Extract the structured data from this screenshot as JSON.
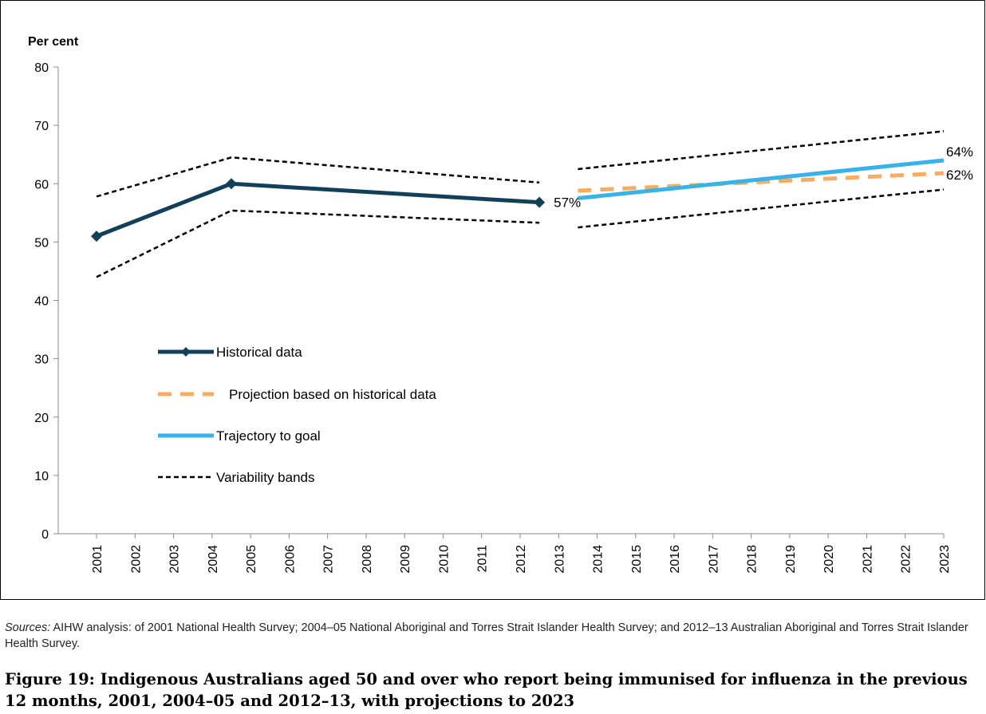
{
  "chart_data": {
    "type": "line",
    "ylabel": "Per cent",
    "ylim": [
      0,
      80
    ],
    "yticks": [
      0,
      10,
      20,
      30,
      40,
      50,
      60,
      70,
      80
    ],
    "categories": [
      "2001",
      "2002",
      "2003",
      "2004",
      "2005",
      "2006",
      "2007",
      "2008",
      "2009",
      "2010",
      "2011",
      "2012",
      "2013",
      "2014",
      "2015",
      "2016",
      "2017",
      "2018",
      "2019",
      "2020",
      "2021",
      "2022",
      "2023"
    ],
    "grid": false,
    "legend_position": "left-center",
    "series": [
      {
        "name": "Historical data",
        "color": "#123f5a",
        "style": "solid-markers",
        "points": [
          {
            "x": 0,
            "y": 51
          },
          {
            "x": 3.5,
            "y": 60
          },
          {
            "x": 11.5,
            "y": 56.8
          }
        ]
      },
      {
        "name": "Projection based on historical data",
        "color": "#f6ad62",
        "style": "dashed",
        "points": [
          {
            "x": 12.5,
            "y": 58.8
          },
          {
            "x": 22,
            "y": 61.8
          }
        ]
      },
      {
        "name": "Trajectory to goal",
        "color": "#36b3ea",
        "style": "solid",
        "points": [
          {
            "x": 12.5,
            "y": 57.5
          },
          {
            "x": 22,
            "y": 64
          }
        ]
      },
      {
        "name": "Variability bands",
        "color": "#000000",
        "style": "short-dashed",
        "segments": [
          [
            {
              "x": 0,
              "y": 57.8
            },
            {
              "x": 3.5,
              "y": 64.5
            },
            {
              "x": 11.5,
              "y": 60.2
            }
          ],
          [
            {
              "x": 0,
              "y": 44
            },
            {
              "x": 3.5,
              "y": 55.4
            },
            {
              "x": 11.5,
              "y": 53.3
            }
          ],
          [
            {
              "x": 12.5,
              "y": 62.5
            },
            {
              "x": 22,
              "y": 69
            }
          ],
          [
            {
              "x": 12.5,
              "y": 52.5
            },
            {
              "x": 22,
              "y": 59
            }
          ]
        ]
      }
    ],
    "annotations": [
      {
        "text": "57%",
        "x": 11.5,
        "y": 56.8,
        "position": "right"
      },
      {
        "text": "64%",
        "x": 22,
        "y": 64,
        "position": "above-right"
      },
      {
        "text": "62%",
        "x": 22,
        "y": 61.8,
        "position": "right"
      }
    ]
  },
  "sources": {
    "label": "Sources:",
    "text": " AIHW analysis: of 2001 National Health Survey; 2004–05 National Aboriginal and Torres Strait Islander Health Survey; and 2012–13 Australian Aboriginal and Torres Strait Islander Health Survey."
  },
  "caption": "Figure 19: Indigenous Australians aged 50 and over who report being immunised for influenza in the previous 12 months, 2001, 2004–05 and 2012–13, with projections to 2023"
}
